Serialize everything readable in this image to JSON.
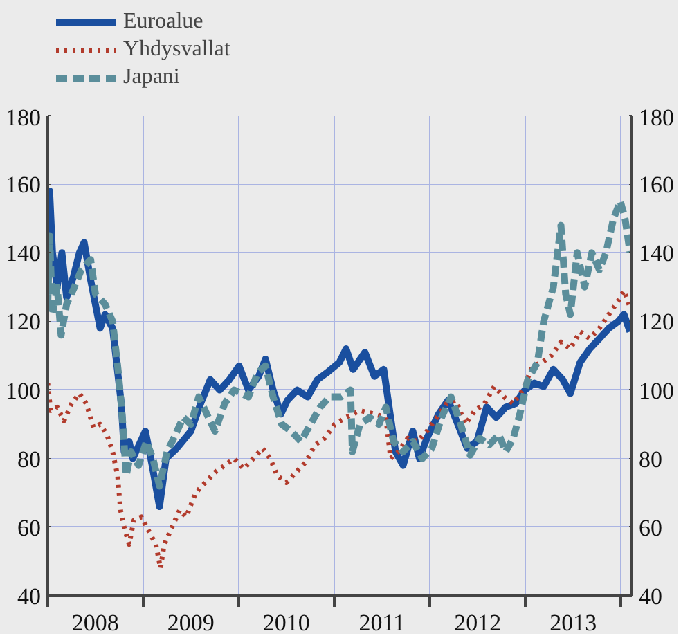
{
  "chart_data": {
    "type": "line",
    "xlim": [
      "2008-01-01",
      "2014-02-10"
    ],
    "ylim": [
      40,
      180
    ],
    "yticks": [
      40,
      60,
      80,
      100,
      120,
      140,
      160,
      180
    ],
    "y2lim": [
      40,
      180
    ],
    "y2ticks": [
      40,
      60,
      80,
      100,
      120,
      140,
      160,
      180
    ],
    "xticks": [
      {
        "value": "2008-01-01",
        "label": null
      },
      {
        "value": "2009-01-01",
        "label": null
      },
      {
        "value": "2010-01-01",
        "label": null
      },
      {
        "value": "2011-01-01",
        "label": null
      },
      {
        "value": "2012-01-01",
        "label": null
      },
      {
        "value": "2013-01-01",
        "label": null
      },
      {
        "value": "2014-01-01",
        "label": null
      },
      {
        "value": "2008-07-01",
        "label": "2008"
      },
      {
        "value": "2009-07-01",
        "label": "2009"
      },
      {
        "value": "2010-07-01",
        "label": "2010"
      },
      {
        "value": "2011-07-01",
        "label": "2011"
      },
      {
        "value": "2012-07-01",
        "label": "2012"
      },
      {
        "value": "2013-07-01",
        "label": "2013"
      }
    ],
    "grid": true,
    "legend": "top left",
    "series": [
      {
        "name": "Euroalue",
        "color": "#1a4f9f",
        "line_style": "solid",
        "x": [
          "2008-01-01",
          "2008-01-08",
          "2008-01-19",
          "2008-02-06",
          "2008-02-24",
          "2008-03-13",
          "2008-04-08",
          "2008-05-01",
          "2008-05-19",
          "2008-06-13",
          "2008-07-01",
          "2008-07-19",
          "2008-08-07",
          "2008-09-05",
          "2008-09-20",
          "2008-10-08",
          "2008-10-19",
          "2008-11-07",
          "2008-11-21",
          "2009-01-08",
          "2009-02-03",
          "2009-03-03",
          "2009-03-28",
          "2009-05-08",
          "2009-07-01",
          "2009-08-07",
          "2009-09-13",
          "2009-10-19",
          "2009-11-25",
          "2010-01-01",
          "2010-02-06",
          "2010-03-17",
          "2010-04-12",
          "2010-05-11",
          "2010-06-10",
          "2010-07-05",
          "2010-08-11",
          "2010-09-20",
          "2010-10-27",
          "2010-12-02",
          "2011-01-19",
          "2011-02-14",
          "2011-03-13",
          "2011-04-27",
          "2011-06-02",
          "2011-07-08",
          "2011-08-03",
          "2011-08-22",
          "2011-09-20",
          "2011-10-27",
          "2011-11-21",
          "2011-12-20",
          "2012-02-03",
          "2012-03-10",
          "2012-04-16",
          "2012-05-22",
          "2012-06-28",
          "2012-08-04",
          "2012-09-10",
          "2012-10-16",
          "2012-11-22",
          "2012-12-28",
          "2013-02-03",
          "2013-03-10",
          "2013-04-16",
          "2013-05-22",
          "2013-06-20",
          "2013-07-27",
          "2013-09-02",
          "2013-10-09",
          "2013-11-14",
          "2013-12-20",
          "2014-01-11",
          "2014-02-03"
        ],
        "values": [
          135,
          158,
          140,
          130,
          140,
          127,
          133,
          140,
          143,
          132,
          125,
          118,
          122,
          118,
          108,
          96,
          82,
          85,
          80,
          88,
          78,
          66,
          80,
          83,
          88,
          96,
          103,
          100,
          103,
          107,
          100,
          104,
          109,
          100,
          93,
          97,
          100,
          98,
          103,
          105,
          108,
          112,
          106,
          111,
          104,
          106,
          92,
          82,
          78,
          88,
          80,
          86,
          93,
          97,
          90,
          83,
          85,
          95,
          92,
          95,
          96,
          100,
          102,
          101,
          106,
          103,
          99,
          108,
          112,
          115,
          118,
          120,
          122,
          117
        ]
      },
      {
        "name": "Yhdysvallat",
        "color": "#b23b2c",
        "line_style": "dotted",
        "x": [
          "2008-01-01",
          "2008-01-12",
          "2008-02-06",
          "2008-03-03",
          "2008-04-01",
          "2008-05-01",
          "2008-05-27",
          "2008-06-24",
          "2008-07-19",
          "2008-08-14",
          "2008-09-05",
          "2008-09-24",
          "2008-10-05",
          "2008-10-19",
          "2008-11-07",
          "2008-11-25",
          "2008-12-24",
          "2009-01-27",
          "2009-02-17",
          "2009-03-07",
          "2009-03-21",
          "2009-04-20",
          "2009-05-19",
          "2009-06-13",
          "2009-07-19",
          "2009-08-25",
          "2009-10-01",
          "2009-11-07",
          "2009-12-13",
          "2010-01-19",
          "2010-02-24",
          "2010-04-01",
          "2010-04-30",
          "2010-05-27",
          "2010-07-01",
          "2010-08-07",
          "2010-09-13",
          "2010-10-19",
          "2010-11-25",
          "2011-01-01",
          "2011-02-14",
          "2011-04-08",
          "2011-06-02",
          "2011-07-16",
          "2011-08-03",
          "2011-09-02",
          "2011-10-08",
          "2011-11-14",
          "2011-12-20",
          "2012-01-27",
          "2012-03-03",
          "2012-04-08",
          "2012-05-15",
          "2012-06-20",
          "2012-07-27",
          "2012-09-02",
          "2012-10-09",
          "2012-11-14",
          "2012-12-20",
          "2013-01-27",
          "2013-03-03",
          "2013-04-08",
          "2013-05-15",
          "2013-06-20",
          "2013-07-27",
          "2013-09-02",
          "2013-10-09",
          "2013-11-14",
          "2013-12-20",
          "2014-01-11",
          "2014-02-03"
        ],
        "values": [
          102,
          94,
          95,
          91,
          96,
          99,
          96,
          89,
          90,
          87,
          82,
          75,
          65,
          60,
          55,
          62,
          63,
          58,
          55,
          48,
          55,
          60,
          65,
          63,
          70,
          73,
          76,
          78,
          80,
          77,
          80,
          83,
          80,
          75,
          73,
          76,
          79,
          84,
          86,
          90,
          92,
          94,
          93,
          92,
          80,
          82,
          86,
          85,
          88,
          92,
          96,
          97,
          90,
          94,
          96,
          101,
          98,
          96,
          100,
          107,
          108,
          110,
          114,
          112,
          117,
          115,
          118,
          122,
          126,
          129,
          124
        ]
      },
      {
        "name": "Japani",
        "color": "#5b8e9b",
        "line_style": "dashed",
        "x": [
          "2008-01-01",
          "2008-01-08",
          "2008-01-19",
          "2008-02-06",
          "2008-02-21",
          "2008-03-13",
          "2008-04-12",
          "2008-05-08",
          "2008-06-13",
          "2008-07-01",
          "2008-08-07",
          "2008-09-05",
          "2008-09-27",
          "2008-10-12",
          "2008-10-27",
          "2008-11-14",
          "2008-12-13",
          "2009-01-12",
          "2009-02-06",
          "2009-03-03",
          "2009-04-01",
          "2009-04-27",
          "2009-06-02",
          "2009-07-01",
          "2009-07-31",
          "2009-09-06",
          "2009-10-01",
          "2009-11-07",
          "2009-12-13",
          "2010-02-06",
          "2010-03-13",
          "2010-04-12",
          "2010-05-11",
          "2010-06-13",
          "2010-07-19",
          "2010-08-25",
          "2010-10-01",
          "2010-11-07",
          "2010-12-13",
          "2011-01-26",
          "2011-03-03",
          "2011-03-10",
          "2011-04-08",
          "2011-05-15",
          "2011-06-20",
          "2011-07-16",
          "2011-08-14",
          "2011-09-20",
          "2011-10-27",
          "2011-12-02",
          "2012-01-08",
          "2012-02-14",
          "2012-03-21",
          "2012-04-27",
          "2012-06-02",
          "2012-07-08",
          "2012-08-14",
          "2012-09-20",
          "2012-10-16",
          "2012-11-14",
          "2012-12-09",
          "2013-01-08",
          "2013-02-14",
          "2013-03-10",
          "2013-04-16",
          "2013-05-15",
          "2013-06-02",
          "2013-06-20",
          "2013-07-16",
          "2013-08-14",
          "2013-09-10",
          "2013-10-09",
          "2013-11-03",
          "2013-12-02",
          "2013-12-28",
          "2014-01-15",
          "2014-02-03"
        ],
        "values": [
          125,
          145,
          122,
          130,
          116,
          125,
          130,
          135,
          138,
          128,
          125,
          120,
          105,
          92,
          75,
          82,
          78,
          85,
          80,
          72,
          82,
          86,
          92,
          90,
          98,
          92,
          88,
          96,
          100,
          98,
          105,
          107,
          98,
          90,
          88,
          85,
          90,
          95,
          98,
          98,
          100,
          82,
          90,
          92,
          90,
          95,
          85,
          82,
          85,
          80,
          83,
          92,
          98,
          90,
          81,
          86,
          84,
          87,
          82,
          86,
          93,
          103,
          108,
          120,
          130,
          148,
          128,
          122,
          140,
          130,
          140,
          135,
          140,
          150,
          155,
          150,
          140
        ]
      }
    ]
  }
}
